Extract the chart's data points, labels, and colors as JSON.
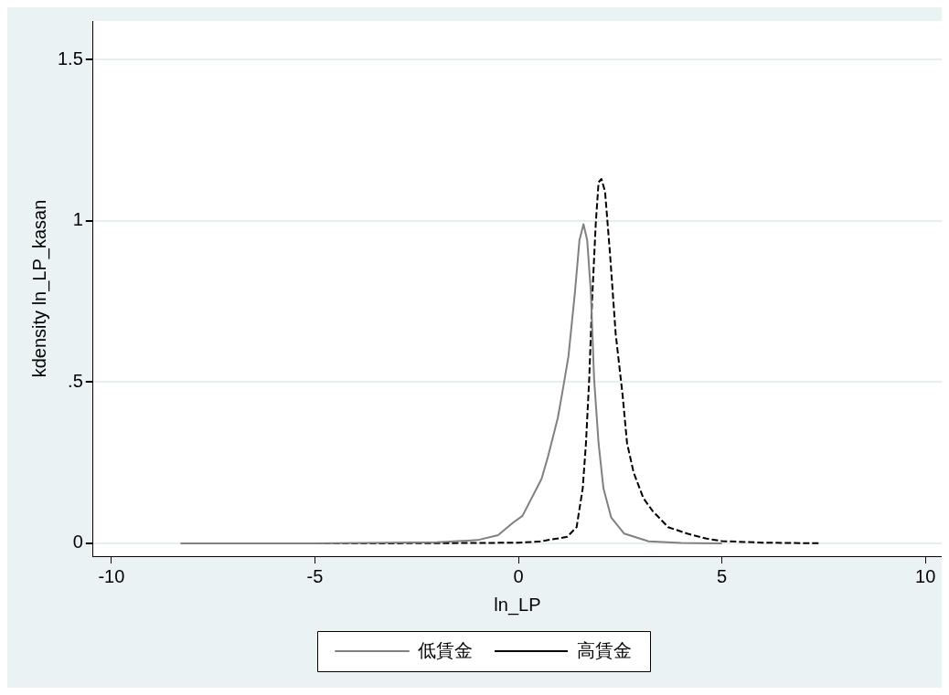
{
  "chart_data": {
    "type": "line",
    "xlabel": "ln_LP",
    "ylabel": "kdensity ln_LP_kasan",
    "xlim": [
      -10.45,
      10.4
    ],
    "xticks": [
      -10,
      -5,
      0,
      5,
      10
    ],
    "ylim": [
      -0.04,
      1.62
    ],
    "yticks": [
      0,
      {
        "value": 0.5,
        "label": ".5"
      },
      1,
      1.5
    ],
    "grid": "y",
    "legend": "bottom",
    "marker": "none",
    "series": [
      {
        "name": "低賃金",
        "color": "#808080",
        "line_style": "solid",
        "x": [
          -8.3,
          -5,
          -2,
          -1,
          -0.5,
          -0.13,
          0.1,
          0.57,
          0.73,
          0.97,
          1.11,
          1.23,
          1.39,
          1.5,
          1.6,
          1.69,
          1.78,
          1.86,
          1.97,
          2.09,
          2.28,
          2.6,
          3.2,
          4,
          5
        ],
        "values": [
          0,
          0,
          0.003,
          0.01,
          0.025,
          0.064,
          0.085,
          0.2,
          0.27,
          0.39,
          0.49,
          0.58,
          0.78,
          0.94,
          0.99,
          0.94,
          0.78,
          0.51,
          0.31,
          0.17,
          0.08,
          0.03,
          0.006,
          0.001,
          0
        ]
      },
      {
        "name": "高賃金",
        "color": "#000000",
        "line_style": "dashed",
        "x": [
          -5.45,
          -3,
          -1,
          0,
          0.5,
          1.2,
          1.43,
          1.58,
          1.66,
          1.74,
          1.81,
          1.9,
          1.97,
          2.04,
          2.13,
          2.25,
          2.39,
          2.56,
          2.67,
          2.83,
          3.07,
          3.3,
          3.68,
          4.15,
          4.6,
          5,
          6,
          7.4
        ],
        "values": [
          0,
          0,
          0.001,
          0.002,
          0.005,
          0.02,
          0.05,
          0.17,
          0.31,
          0.51,
          0.75,
          0.99,
          1.12,
          1.13,
          1.09,
          0.9,
          0.65,
          0.46,
          0.31,
          0.22,
          0.14,
          0.1,
          0.05,
          0.03,
          0.015,
          0.007,
          0.002,
          0
        ]
      }
    ]
  }
}
